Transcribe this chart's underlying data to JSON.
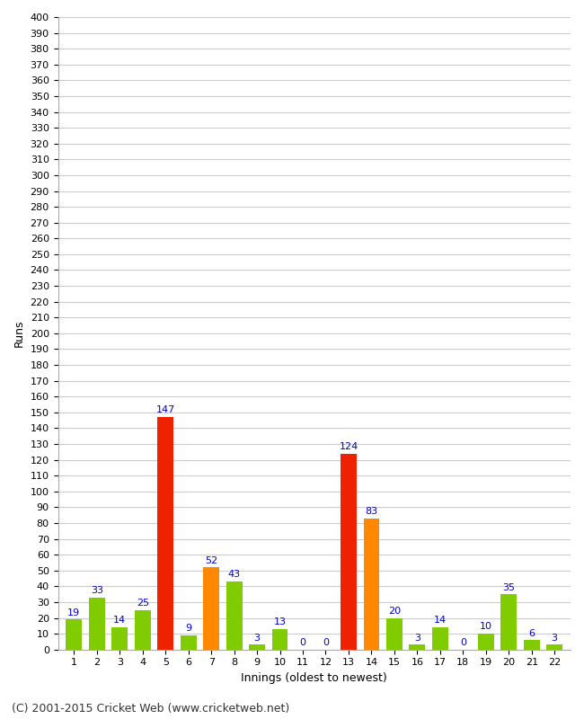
{
  "title": "",
  "xlabel": "Innings (oldest to newest)",
  "ylabel": "Runs",
  "footer": "(C) 2001-2015 Cricket Web (www.cricketweb.net)",
  "ylim": [
    0,
    400
  ],
  "yticks": [
    0,
    10,
    20,
    30,
    40,
    50,
    60,
    70,
    80,
    90,
    100,
    110,
    120,
    130,
    140,
    150,
    160,
    170,
    180,
    190,
    200,
    210,
    220,
    230,
    240,
    250,
    260,
    270,
    280,
    290,
    300,
    310,
    320,
    330,
    340,
    350,
    360,
    370,
    380,
    390,
    400
  ],
  "innings": [
    1,
    2,
    3,
    4,
    5,
    6,
    7,
    8,
    9,
    10,
    11,
    12,
    13,
    14,
    15,
    16,
    17,
    18,
    19,
    20,
    21,
    22
  ],
  "values": [
    19,
    33,
    14,
    25,
    147,
    9,
    52,
    43,
    3,
    13,
    0,
    0,
    124,
    83,
    20,
    3,
    14,
    0,
    10,
    35,
    6,
    3
  ],
  "colors": [
    "#80cc00",
    "#80cc00",
    "#80cc00",
    "#80cc00",
    "#ee2200",
    "#80cc00",
    "#ff8800",
    "#80cc00",
    "#80cc00",
    "#80cc00",
    "#80cc00",
    "#80cc00",
    "#ee2200",
    "#ff8800",
    "#80cc00",
    "#80cc00",
    "#80cc00",
    "#80cc00",
    "#80cc00",
    "#80cc00",
    "#80cc00",
    "#80cc00"
  ],
  "label_color": "#0000cc",
  "background_color": "#ffffff",
  "grid_color": "#cccccc",
  "label_fontsize": 9,
  "tick_fontsize": 8,
  "footer_fontsize": 9,
  "bar_label_fontsize": 8
}
